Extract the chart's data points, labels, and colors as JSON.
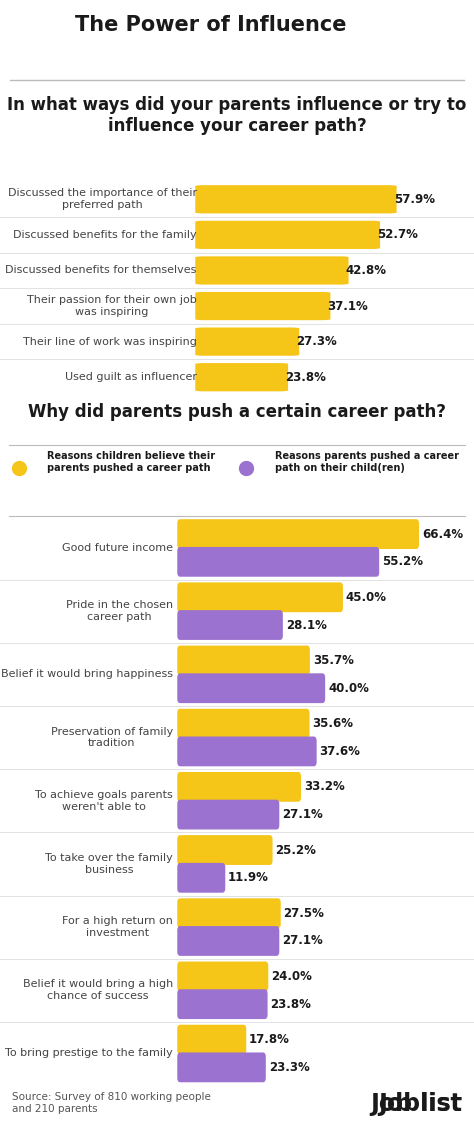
{
  "title": "The Power of Influence",
  "section1_title": "In what ways did your parents influence or try to\ninfluence your career path?",
  "section1_labels": [
    "Discussed the importance of their\npreferred path",
    "Discussed benefits for the family",
    "Discussed benefits for themselves",
    "Their passion for their own job\nwas inspiring",
    "Their line of work was inspiring",
    "Used guilt as influencer"
  ],
  "section1_values": [
    57.9,
    52.7,
    42.8,
    37.1,
    27.3,
    23.8
  ],
  "section2_title": "Why did parents push a certain career path?",
  "section2_labels": [
    "Good future income",
    "Pride in the chosen\ncareer path",
    "Belief it would bring happiness",
    "Preservation of family\ntradition",
    "To achieve goals parents\nweren't able to",
    "To take over the family\nbusiness",
    "For a high return on\ninvestment",
    "Belief it would bring a high\nchance of success",
    "To bring prestige to the family"
  ],
  "section2_yellow_values": [
    66.4,
    45.0,
    35.7,
    35.6,
    33.2,
    25.2,
    27.5,
    24.0,
    17.8
  ],
  "section2_purple_values": [
    55.2,
    28.1,
    40.0,
    37.6,
    27.1,
    11.9,
    27.1,
    23.8,
    23.3
  ],
  "yellow_color": "#F5C518",
  "purple_color": "#9B72CF",
  "legend_yellow": "Reasons children believe their\nparents pushed a career path",
  "legend_purple": "Reasons parents pushed a career\npath on their child(ren)",
  "source_text": "Source: Survey of 810 working people\nand 210 parents",
  "background_color": "#FFFFFF",
  "value_fontsize": 8.5,
  "label_fontsize": 8.0,
  "title_fontsize": 12
}
